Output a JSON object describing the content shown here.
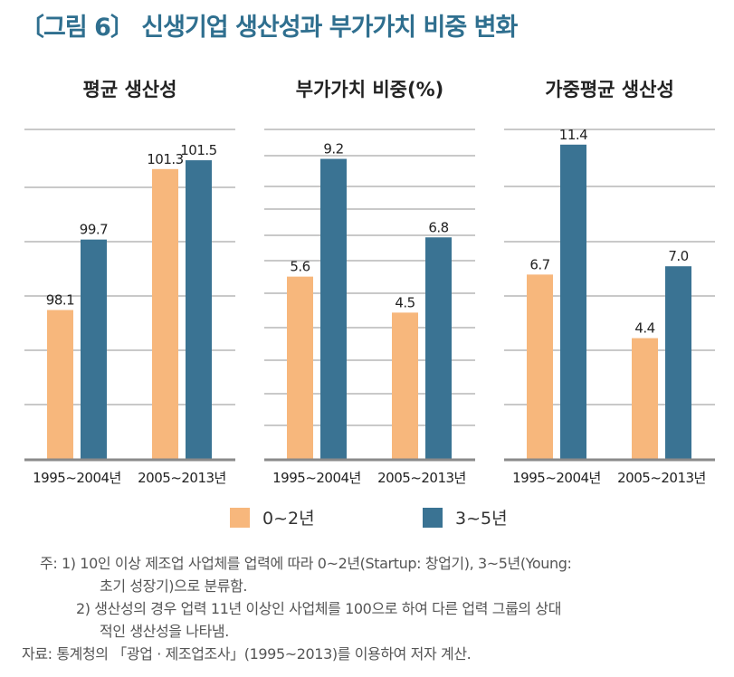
{
  "figure": {
    "title": "〔그림 6〕 신생기업 생산성과 부가가치 비중 변화",
    "accent_color": "#2f6f8f"
  },
  "legend": [
    {
      "label": "0~2년",
      "color": "#f7b77c"
    },
    {
      "label": "3~5년",
      "color": "#3a7393"
    }
  ],
  "chart_data": [
    {
      "type": "bar",
      "title": "평균 생산성",
      "categories": [
        "1995~2004년",
        "2005~2013년"
      ],
      "series": [
        {
          "name": "0~2년",
          "values": [
            98.1,
            101.3
          ]
        },
        {
          "name": "3~5년",
          "values": [
            99.7,
            101.5
          ]
        }
      ],
      "ylim": [
        94.7,
        102.2
      ],
      "grid": true,
      "legend_position": "bottom"
    },
    {
      "type": "bar",
      "title": "부가가치 비중(%)",
      "categories": [
        "1995~2004년",
        "2005~2013년"
      ],
      "series": [
        {
          "name": "0~2년",
          "values": [
            5.6,
            4.5
          ]
        },
        {
          "name": "3~5년",
          "values": [
            9.2,
            6.8
          ]
        }
      ],
      "ylim": [
        0,
        10.1
      ],
      "grid": true,
      "legend_position": "bottom"
    },
    {
      "type": "bar",
      "title": "가중평균 생산성",
      "categories": [
        "1995~2004년",
        "2005~2013년"
      ],
      "series": [
        {
          "name": "0~2년",
          "values": [
            6.7,
            4.4
          ]
        },
        {
          "name": "3~5년",
          "values": [
            11.4,
            7.0
          ]
        }
      ],
      "ylim": [
        0,
        11.95
      ],
      "grid": true,
      "legend_position": "bottom"
    }
  ],
  "notes": {
    "prefix": "주:",
    "note1_line1": "1) 10인 이상 제조업 사업체를 업력에 따라 0~2년(Startup: 창업기), 3~5년(Young:",
    "note1_line2": "초기 성장기)으로 분류함.",
    "note2_line1": "2) 생산성의 경우 업력 11년 이상인 사업체를 100으로 하여 다른 업력 그룹의 상대",
    "note2_line2": "적인 생산성을 나타냄.",
    "source": "자료: 통계청의 「광업 · 제조업조사」(1995~2013)를 이용하여 저자 계산."
  }
}
